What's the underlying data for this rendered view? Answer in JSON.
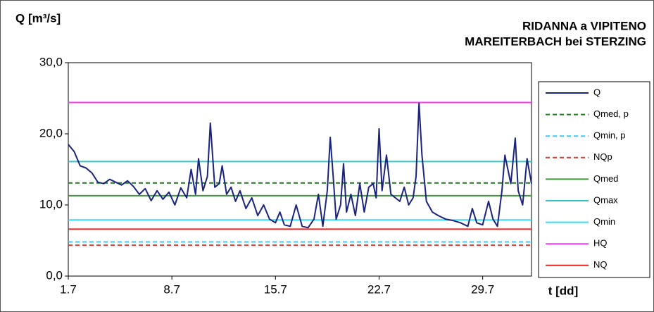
{
  "chart_data": {
    "type": "line",
    "y_label": "Q [m³/s]",
    "title": "RIDANNA a VIPITENO",
    "subtitle": "MAREITERBACH bei STERZING",
    "x_label": "t [dd]",
    "xlim": [
      1,
      32.3
    ],
    "xticks": [
      {
        "value": 1,
        "label": "1.7"
      },
      {
        "value": 8,
        "label": "8.7"
      },
      {
        "value": 15,
        "label": "15.7"
      },
      {
        "value": 22,
        "label": "22.7"
      },
      {
        "value": 29,
        "label": "29.7"
      }
    ],
    "ylim": [
      0,
      30
    ],
    "yticks": [
      {
        "value": 0,
        "label": "0,0"
      },
      {
        "value": 10,
        "label": "10,0"
      },
      {
        "value": 20,
        "label": "20,0"
      },
      {
        "value": 30,
        "label": "30,0"
      }
    ],
    "x": [
      1.0,
      1.4,
      1.8,
      2.2,
      2.6,
      3.0,
      3.4,
      3.8,
      4.2,
      4.6,
      5.0,
      5.4,
      5.8,
      6.2,
      6.6,
      7.0,
      7.4,
      7.8,
      8.2,
      8.6,
      9.0,
      9.3,
      9.6,
      9.8,
      10.1,
      10.4,
      10.6,
      10.9,
      11.2,
      11.4,
      11.7,
      12.0,
      12.3,
      12.6,
      13.0,
      13.4,
      13.8,
      14.2,
      14.6,
      15.0,
      15.3,
      15.6,
      16.0,
      16.4,
      16.8,
      17.2,
      17.6,
      17.9,
      18.2,
      18.5,
      18.7,
      18.9,
      19.1,
      19.4,
      19.6,
      19.8,
      20.1,
      20.4,
      20.7,
      21.0,
      21.3,
      21.6,
      21.8,
      22.0,
      22.2,
      22.5,
      22.8,
      23.1,
      23.4,
      23.7,
      24.0,
      24.3,
      24.5,
      24.7,
      24.9,
      25.2,
      25.6,
      26.0,
      26.5,
      27.0,
      27.5,
      28.0,
      28.3,
      28.6,
      29.0,
      29.4,
      29.7,
      30.0,
      30.3,
      30.5,
      30.7,
      30.9,
      31.2,
      31.4,
      31.7,
      32.0,
      32.3
    ],
    "series": [
      {
        "name": "Q",
        "color": "#1a237e",
        "dashed": false,
        "values": [
          18.5,
          17.5,
          15.5,
          15.2,
          14.5,
          13.2,
          13.0,
          13.6,
          13.2,
          12.8,
          13.4,
          12.6,
          11.5,
          12.3,
          10.6,
          12.0,
          10.8,
          11.8,
          10.0,
          12.4,
          11.0,
          15.0,
          11.5,
          16.5,
          12.0,
          14.0,
          21.5,
          12.5,
          13.0,
          15.5,
          11.5,
          12.5,
          10.5,
          12.0,
          9.5,
          11.0,
          8.5,
          10.0,
          8.0,
          7.5,
          9.0,
          7.2,
          7.0,
          10.0,
          7.0,
          6.8,
          8.0,
          11.5,
          7.0,
          12.0,
          19.5,
          14.0,
          8.0,
          10.0,
          15.8,
          9.0,
          11.5,
          8.5,
          13.0,
          9.0,
          12.5,
          13.0,
          11.0,
          20.7,
          12.0,
          17.0,
          11.5,
          11.0,
          10.5,
          12.5,
          10.0,
          11.0,
          14.0,
          24.3,
          17.0,
          10.5,
          9.0,
          8.5,
          8.0,
          7.8,
          7.5,
          7.0,
          9.5,
          7.5,
          7.2,
          10.5,
          8.0,
          7.0,
          12.0,
          17.0,
          15.0,
          13.0,
          19.4,
          12.0,
          10.0,
          16.5,
          13.0
        ]
      }
    ],
    "reference_lines": [
      {
        "name": "Qmed, p",
        "color": "#1e7b1e",
        "dashed": true,
        "value": 13.1
      },
      {
        "name": "Qmin, p",
        "color": "#33ccff",
        "dashed": true,
        "value": 4.8
      },
      {
        "name": "NQp",
        "color": "#e53935",
        "dashed": true,
        "value": 4.35
      },
      {
        "name": "Qmed",
        "color": "#3a9a3a",
        "dashed": false,
        "value": 11.3
      },
      {
        "name": "Qmax",
        "color": "#33c6c6",
        "dashed": false,
        "value": 16.1
      },
      {
        "name": "Qmin",
        "color": "#33ddff",
        "dashed": false,
        "value": 7.9
      },
      {
        "name": "HQ",
        "color": "#ff33ff",
        "dashed": false,
        "value": 24.4
      },
      {
        "name": "NQ",
        "color": "#ee2222",
        "dashed": false,
        "value": 6.6
      }
    ]
  }
}
